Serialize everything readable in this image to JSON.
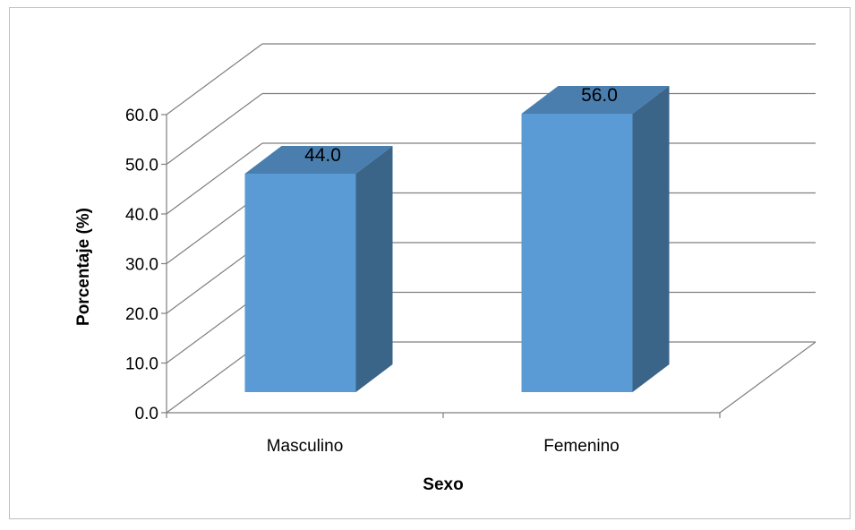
{
  "chart_data": {
    "type": "bar",
    "categories": [
      "Masculino",
      "Femenino"
    ],
    "values": [
      44.0,
      56.0
    ],
    "value_labels": [
      "44.0",
      "56.0"
    ],
    "title": "",
    "xlabel": "Sexo",
    "ylabel": "Porcentaje (%)",
    "ylim": [
      0,
      60
    ],
    "y_ticks": [
      "0.0",
      "10.0",
      "20.0",
      "30.0",
      "40.0",
      "50.0",
      "60.0"
    ],
    "grid": true,
    "legend": "none",
    "three_d": true,
    "colors": {
      "bar_front": "#5b9bd5",
      "bar_top": "#4a7eae",
      "bar_side": "#3a6488",
      "grid": "#7f7f7f"
    }
  }
}
